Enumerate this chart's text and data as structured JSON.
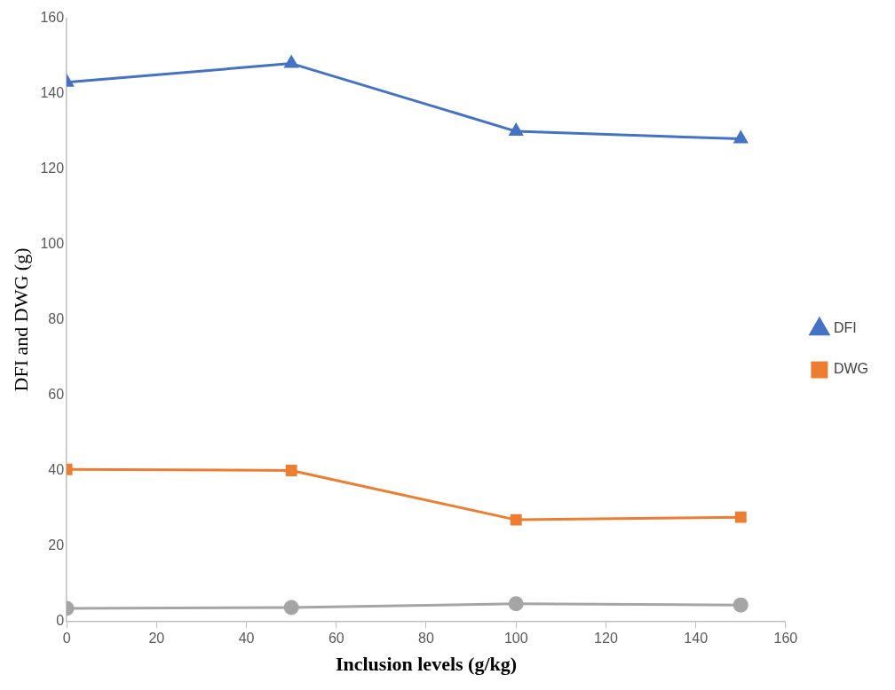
{
  "chart_data": {
    "type": "line",
    "xlabel": "Inclusion levels (g/kg)",
    "ylabel": "DFI and DWG (g)",
    "x": [
      0,
      50,
      100,
      150
    ],
    "series": [
      {
        "name": "DFI",
        "color": "#4472c4",
        "marker": "triangle",
        "values": [
          143,
          148,
          130,
          128
        ]
      },
      {
        "name": "DWG",
        "color": "#ed7d31",
        "marker": "square",
        "values": [
          40.3,
          40,
          26.9,
          27.6
        ]
      },
      {
        "color": "#a5a5a5",
        "marker": "circle",
        "values": [
          3.4,
          3.6,
          4.6,
          4.3
        ]
      }
    ],
    "xlim": [
      0,
      160
    ],
    "xticks": [
      0,
      20,
      40,
      60,
      80,
      100,
      120,
      140,
      160
    ],
    "ylim": [
      0,
      160
    ],
    "yticks": [
      0,
      20,
      40,
      60,
      80,
      100,
      120,
      140,
      160
    ],
    "grid": false,
    "legend": "right",
    "line_style": "solid"
  }
}
